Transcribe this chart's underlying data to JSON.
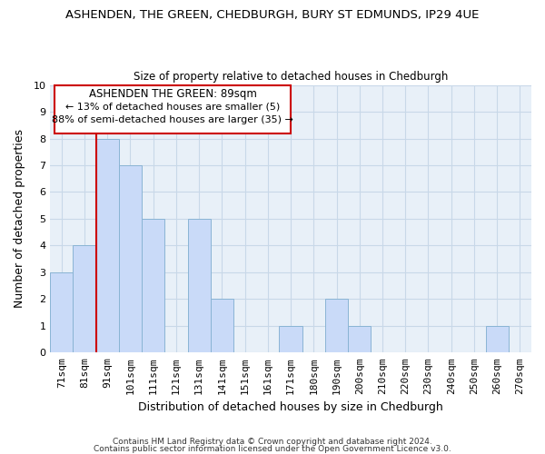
{
  "title": "ASHENDEN, THE GREEN, CHEDBURGH, BURY ST EDMUNDS, IP29 4UE",
  "subtitle": "Size of property relative to detached houses in Chedburgh",
  "xlabel": "Distribution of detached houses by size in Chedburgh",
  "ylabel": "Number of detached properties",
  "bar_labels": [
    "71sqm",
    "81sqm",
    "91sqm",
    "101sqm",
    "111sqm",
    "121sqm",
    "131sqm",
    "141sqm",
    "151sqm",
    "161sqm",
    "171sqm",
    "180sqm",
    "190sqm",
    "200sqm",
    "210sqm",
    "220sqm",
    "230sqm",
    "240sqm",
    "250sqm",
    "260sqm",
    "270sqm"
  ],
  "bar_values": [
    3,
    4,
    8,
    7,
    5,
    0,
    5,
    2,
    0,
    0,
    1,
    0,
    2,
    1,
    0,
    0,
    0,
    0,
    0,
    1,
    0
  ],
  "bar_color": "#c9daf8",
  "bar_edge_color": "#8ab4d4",
  "marker_line_index": 2,
  "marker_line_color": "#cc0000",
  "ylim": [
    0,
    10
  ],
  "yticks": [
    0,
    1,
    2,
    3,
    4,
    5,
    6,
    7,
    8,
    9,
    10
  ],
  "annotation_title": "ASHENDEN THE GREEN: 89sqm",
  "annotation_line1": "← 13% of detached houses are smaller (5)",
  "annotation_line2": "88% of semi-detached houses are larger (35) →",
  "footnote1": "Contains HM Land Registry data © Crown copyright and database right 2024.",
  "footnote2": "Contains public sector information licensed under the Open Government Licence v3.0.",
  "grid_color": "#c8d8e8",
  "background_color": "#e8f0f8",
  "title_fontsize": 9.5,
  "subtitle_fontsize": 8.5,
  "xlabel_fontsize": 9,
  "ylabel_fontsize": 9,
  "tick_fontsize": 8,
  "annotation_title_fontsize": 8.5,
  "annotation_text_fontsize": 8
}
